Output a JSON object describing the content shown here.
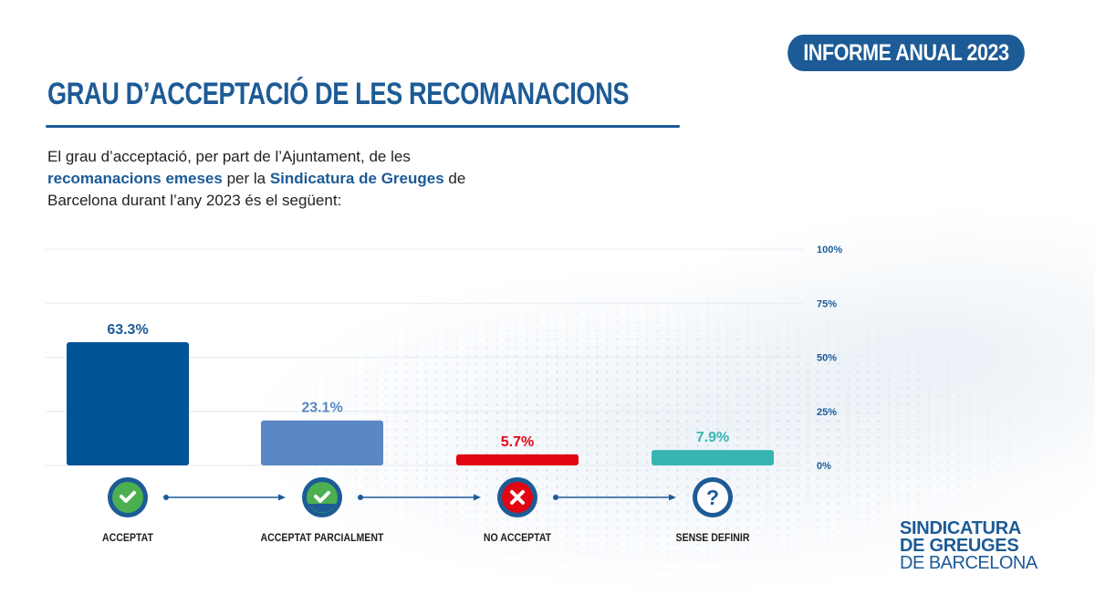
{
  "header": {
    "badge": "INFORME ANUAL 2023",
    "title": "GRAU D’ACCEPTACIÓ DE LES RECOMANACIONS"
  },
  "intro": {
    "part1": "El grau d’acceptació, per part de l’Ajuntament, de les ",
    "highlight1": "recomanacions emeses",
    "part2": " per la ",
    "highlight2": "Sindicatura de Greuges",
    "part3": " de Barcelona durant l’any 2023 és el següent:"
  },
  "logo": {
    "line1": "SINDICATURA",
    "line2": "DE GREUGES",
    "line3": "DE BARCELONA"
  },
  "colors": {
    "brand": "#1d5b96",
    "grid": "#e6e9ee",
    "arrow": "#1d5b96"
  },
  "chart_data": {
    "type": "bar",
    "title": "",
    "xlabel": "",
    "ylabel": "",
    "ylim": [
      0,
      100
    ],
    "yticks": [
      0,
      25,
      50,
      75,
      100
    ],
    "ytick_labels": [
      "0%",
      "25%",
      "50%",
      "75%",
      "100%"
    ],
    "axis_position": "right",
    "grid": true,
    "categories": [
      "ACCEPTAT",
      "ACCEPTAT PARCIALMENT",
      "NO ACCEPTAT",
      "SENSE DEFINIR"
    ],
    "values": [
      63.3,
      23.1,
      5.7,
      7.9
    ],
    "value_labels": [
      "63.3%",
      "23.1%",
      "5.7%",
      "7.9%"
    ],
    "bar_colors": [
      "#005396",
      "#5b87c4",
      "#e20613",
      "#37b5b2"
    ],
    "label_colors": [
      "#1d5b96",
      "#5b87c4",
      "#e20613",
      "#37b5b2"
    ],
    "icons": [
      {
        "name": "check-circle-icon",
        "fill": "#4caf50",
        "ring": "#1d5b96",
        "partial": false
      },
      {
        "name": "partial-check-circle-icon",
        "fill": "#4caf50",
        "ring": "#1d5b96",
        "partial": true
      },
      {
        "name": "x-circle-icon",
        "fill": "#e20613",
        "ring": "#1d5b96",
        "partial": false
      },
      {
        "name": "question-circle-icon",
        "fill": "#ffffff",
        "ring": "#1d5b96",
        "partial": false
      }
    ],
    "flow_arrows": true
  }
}
